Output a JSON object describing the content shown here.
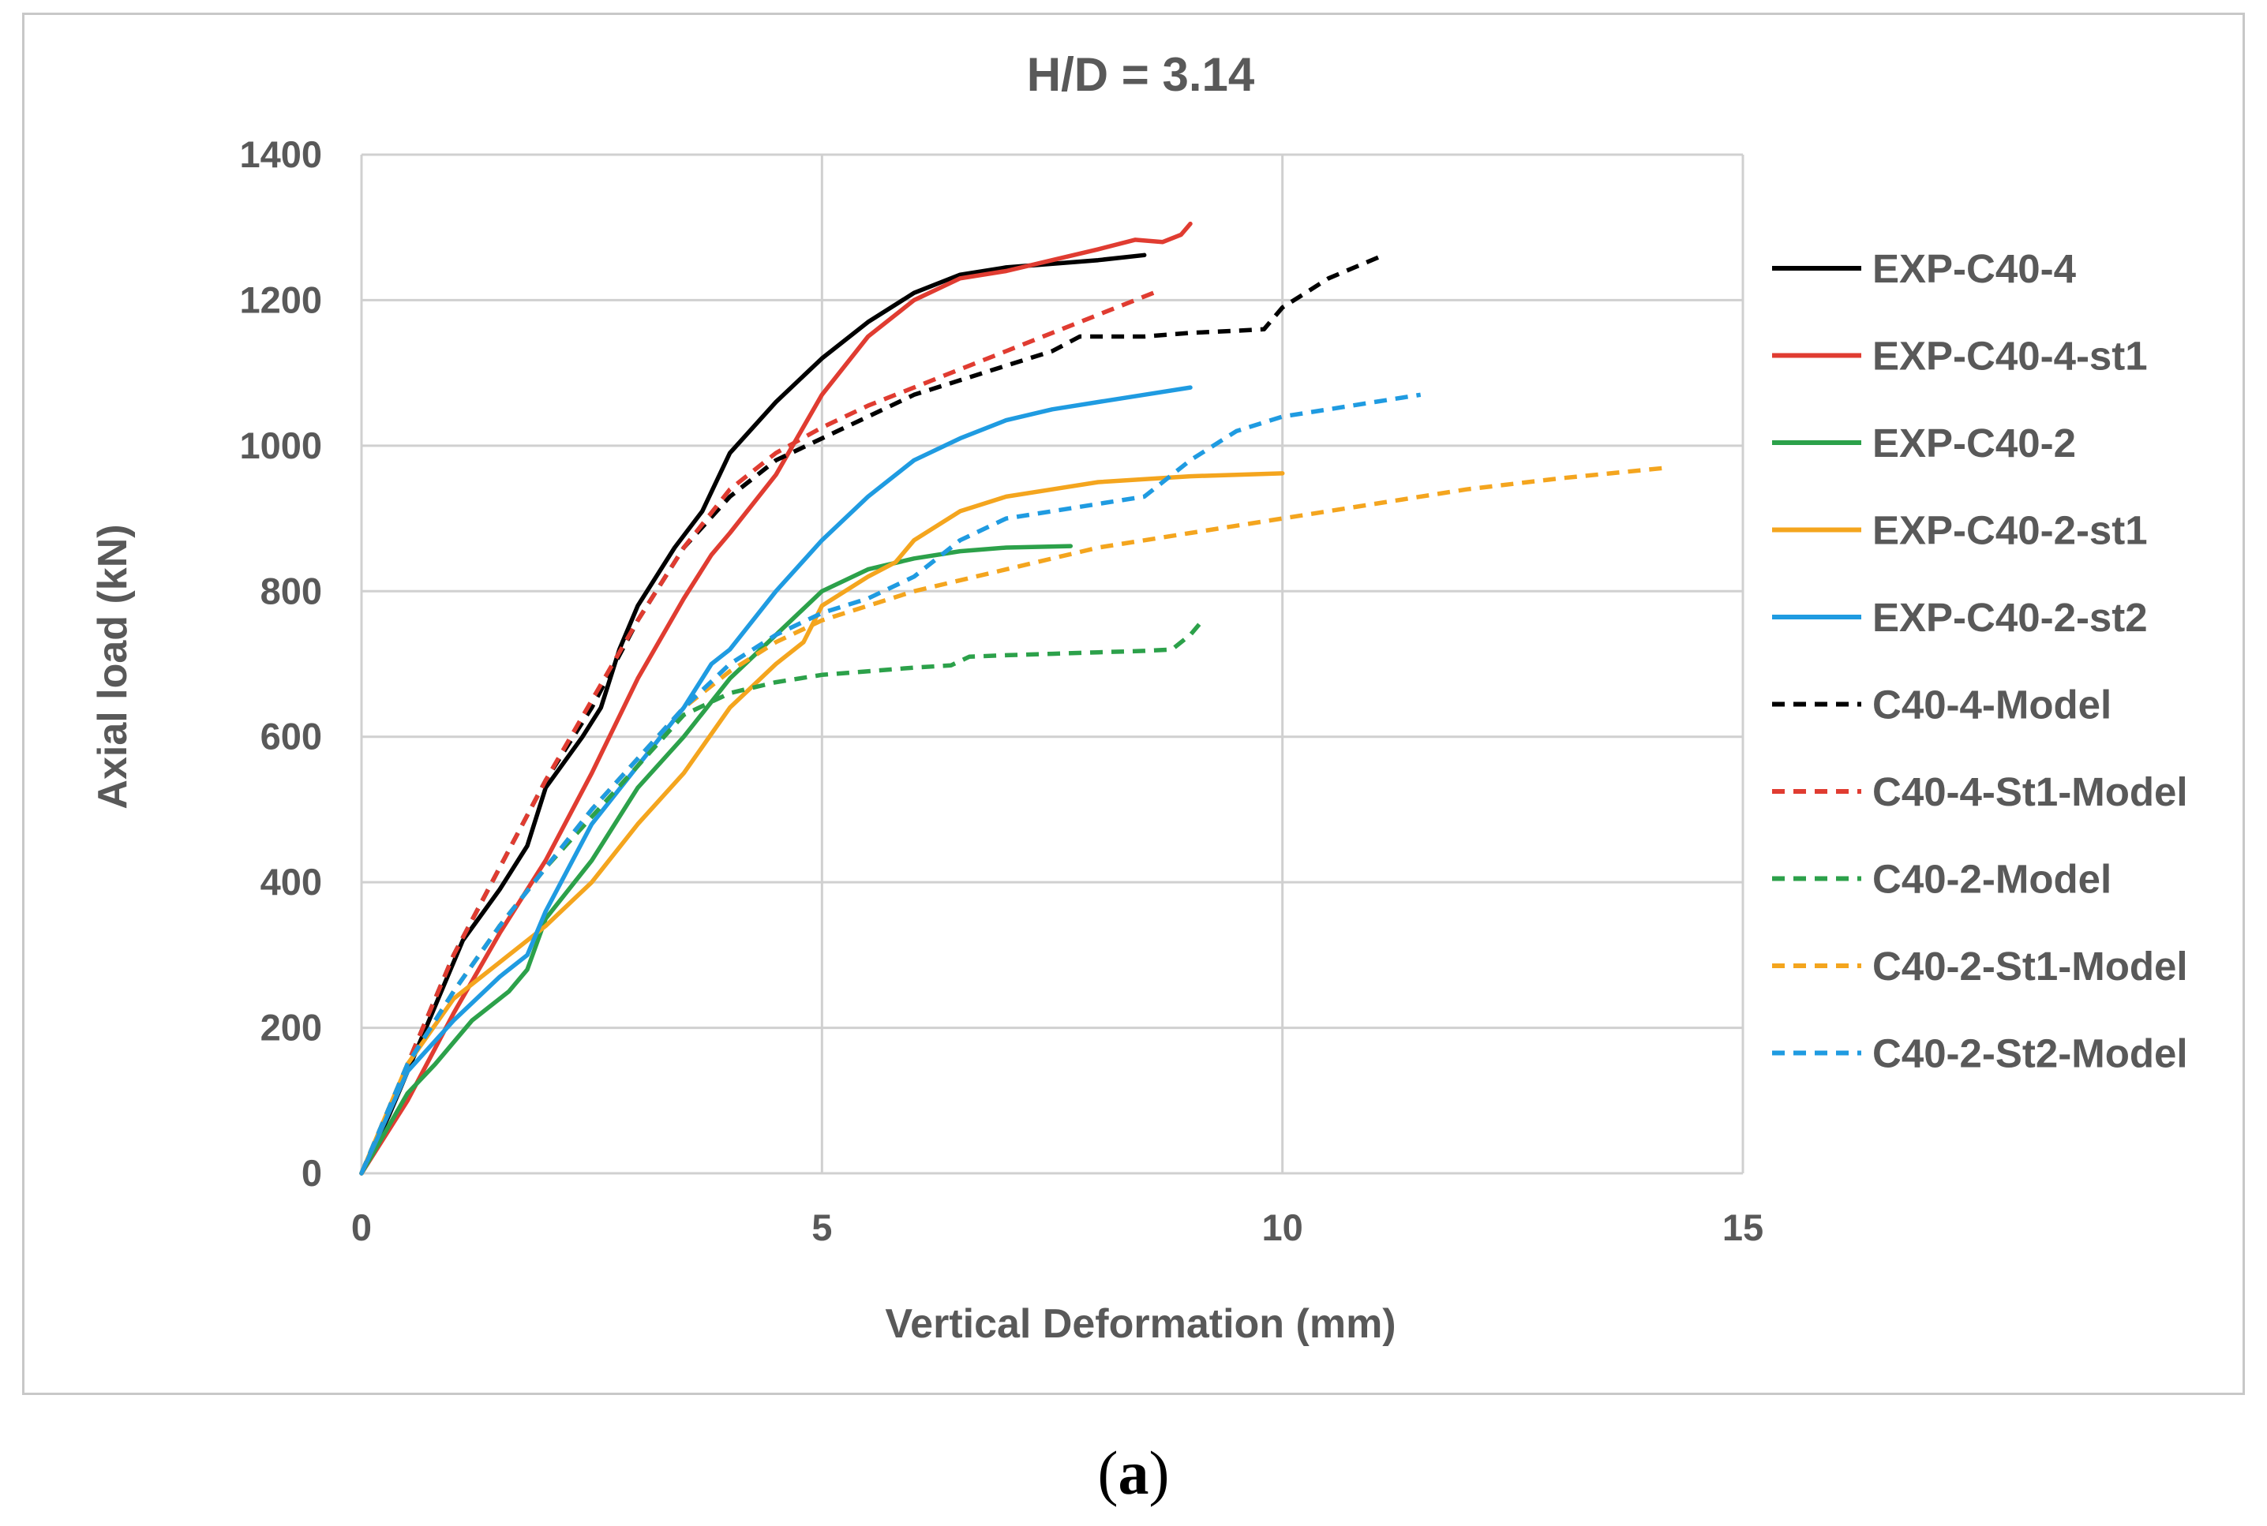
{
  "chart_data": {
    "type": "line",
    "title": "H/D = 3.14",
    "xlabel": "Vertical Deformation (mm)",
    "ylabel": "Axial load (kN)",
    "xlim": [
      0,
      15
    ],
    "ylim": [
      0,
      1400
    ],
    "xticks": [
      0,
      5,
      10,
      15
    ],
    "yticks": [
      0,
      200,
      400,
      600,
      800,
      1000,
      1200,
      1400
    ],
    "grid": true,
    "legend_position": "right",
    "series": [
      {
        "name": "EXP-C40-4",
        "color": "#000000",
        "dash": "solid",
        "x": [
          0,
          0.3,
          0.6,
          0.8,
          1.1,
          1.5,
          1.8,
          2.0,
          2.4,
          2.6,
          2.8,
          3.0,
          3.4,
          3.7,
          4.0,
          4.5,
          5.0,
          5.5,
          6.0,
          6.5,
          7.0,
          8.0,
          8.5
        ],
        "y": [
          0,
          80,
          170,
          230,
          320,
          390,
          450,
          530,
          600,
          640,
          720,
          780,
          860,
          910,
          990,
          1060,
          1120,
          1170,
          1210,
          1235,
          1245,
          1255,
          1262
        ]
      },
      {
        "name": "EXP-C40-4-st1",
        "color": "#e03c31",
        "dash": "solid",
        "x": [
          0,
          0.5,
          1.0,
          1.5,
          2.0,
          2.5,
          3.0,
          3.5,
          3.8,
          4.0,
          4.5,
          5.0,
          5.5,
          6.0,
          6.5,
          7.0,
          7.5,
          8.0,
          8.4,
          8.7,
          8.9,
          9.0
        ],
        "y": [
          0,
          100,
          220,
          330,
          430,
          550,
          680,
          790,
          850,
          880,
          960,
          1070,
          1150,
          1200,
          1230,
          1240,
          1255,
          1270,
          1283,
          1280,
          1290,
          1305
        ]
      },
      {
        "name": "EXP-C40-2",
        "color": "#2ca14a",
        "dash": "solid",
        "x": [
          0,
          0.5,
          0.8,
          1.2,
          1.6,
          1.8,
          2.0,
          2.5,
          3.0,
          3.5,
          4.0,
          4.5,
          5.0,
          5.5,
          6.0,
          6.5,
          7.0,
          7.7
        ],
        "y": [
          0,
          110,
          150,
          210,
          250,
          280,
          350,
          430,
          530,
          600,
          680,
          740,
          800,
          830,
          845,
          855,
          860,
          862
        ]
      },
      {
        "name": "EXP-C40-2-st1",
        "color": "#f4a51e",
        "dash": "solid",
        "x": [
          0,
          0.5,
          1.0,
          1.5,
          2.0,
          2.5,
          3.0,
          3.5,
          4.0,
          4.5,
          4.8,
          5.0,
          5.5,
          5.8,
          6.0,
          6.5,
          7.0,
          7.5,
          8.0,
          9.0,
          10.0
        ],
        "y": [
          0,
          150,
          240,
          290,
          340,
          400,
          480,
          550,
          640,
          700,
          730,
          780,
          820,
          840,
          870,
          910,
          930,
          940,
          950,
          958,
          962
        ]
      },
      {
        "name": "EXP-C40-2-st2",
        "color": "#1f9be1",
        "dash": "solid",
        "x": [
          0,
          0.5,
          1.0,
          1.5,
          1.8,
          2.0,
          2.5,
          3.0,
          3.5,
          3.8,
          4.0,
          4.5,
          5.0,
          5.5,
          6.0,
          6.5,
          7.0,
          7.5,
          8.0,
          8.5,
          9.0
        ],
        "y": [
          0,
          140,
          210,
          270,
          300,
          360,
          480,
          560,
          640,
          700,
          720,
          800,
          870,
          930,
          980,
          1010,
          1035,
          1050,
          1060,
          1070,
          1080
        ]
      },
      {
        "name": "C40-4-Model",
        "color": "#000000",
        "dash": "dashed",
        "x": [
          0,
          0.5,
          1.0,
          1.5,
          2.0,
          2.5,
          3.0,
          3.5,
          4.0,
          4.5,
          5.0,
          5.5,
          6.0,
          6.5,
          7.0,
          7.5,
          7.8,
          8.5,
          9.0,
          9.5,
          9.8,
          10.0,
          10.5,
          11.1
        ],
        "y": [
          0,
          150,
          300,
          420,
          540,
          640,
          760,
          860,
          930,
          980,
          1010,
          1040,
          1070,
          1090,
          1110,
          1130,
          1150,
          1150,
          1155,
          1158,
          1160,
          1190,
          1230,
          1262
        ]
      },
      {
        "name": "C40-4-St1-Model",
        "color": "#e03c31",
        "dash": "dashed",
        "x": [
          0,
          0.5,
          1.0,
          1.5,
          2.0,
          2.5,
          3.0,
          3.5,
          4.0,
          4.5,
          5.0,
          5.5,
          6.0,
          6.5,
          7.0,
          7.5,
          8.0,
          8.6
        ],
        "y": [
          0,
          150,
          300,
          420,
          540,
          650,
          760,
          860,
          940,
          990,
          1025,
          1055,
          1080,
          1105,
          1130,
          1155,
          1180,
          1210
        ]
      },
      {
        "name": "C40-2-Model",
        "color": "#2ca14a",
        "dash": "dashed",
        "x": [
          0,
          0.5,
          1.0,
          1.5,
          2.0,
          2.5,
          3.0,
          3.5,
          4.0,
          4.5,
          5.0,
          5.5,
          6.0,
          6.4,
          6.6,
          7.0,
          7.5,
          8.0,
          8.5,
          8.8,
          9.0,
          9.1
        ],
        "y": [
          0,
          150,
          250,
          340,
          420,
          490,
          560,
          630,
          660,
          675,
          685,
          690,
          695,
          698,
          710,
          712,
          714,
          716,
          718,
          720,
          740,
          755
        ]
      },
      {
        "name": "C40-2-St1-Model",
        "color": "#f4a51e",
        "dash": "dashed",
        "x": [
          0,
          0.5,
          1.0,
          1.5,
          2.0,
          2.5,
          3.0,
          3.5,
          4.0,
          4.5,
          5.0,
          6.0,
          7.0,
          8.0,
          9.0,
          10.0,
          11.0,
          12.0,
          13.0,
          14.2
        ],
        "y": [
          0,
          150,
          250,
          340,
          420,
          500,
          570,
          640,
          690,
          730,
          760,
          800,
          830,
          860,
          880,
          900,
          920,
          940,
          955,
          970
        ]
      },
      {
        "name": "C40-2-St2-Model",
        "color": "#1f9be1",
        "dash": "dashed",
        "x": [
          0,
          0.5,
          1.0,
          1.5,
          2.0,
          2.5,
          3.0,
          3.5,
          4.0,
          4.5,
          5.0,
          5.5,
          6.0,
          6.5,
          7.0,
          7.5,
          8.0,
          8.5,
          9.0,
          9.5,
          10.0,
          10.5,
          11.0,
          11.5
        ],
        "y": [
          0,
          150,
          250,
          340,
          420,
          500,
          570,
          640,
          700,
          740,
          770,
          790,
          820,
          870,
          900,
          910,
          920,
          930,
          980,
          1020,
          1040,
          1050,
          1060,
          1070
        ]
      }
    ]
  },
  "caption": {
    "open": "(",
    "letter": "a",
    "close": ")"
  }
}
